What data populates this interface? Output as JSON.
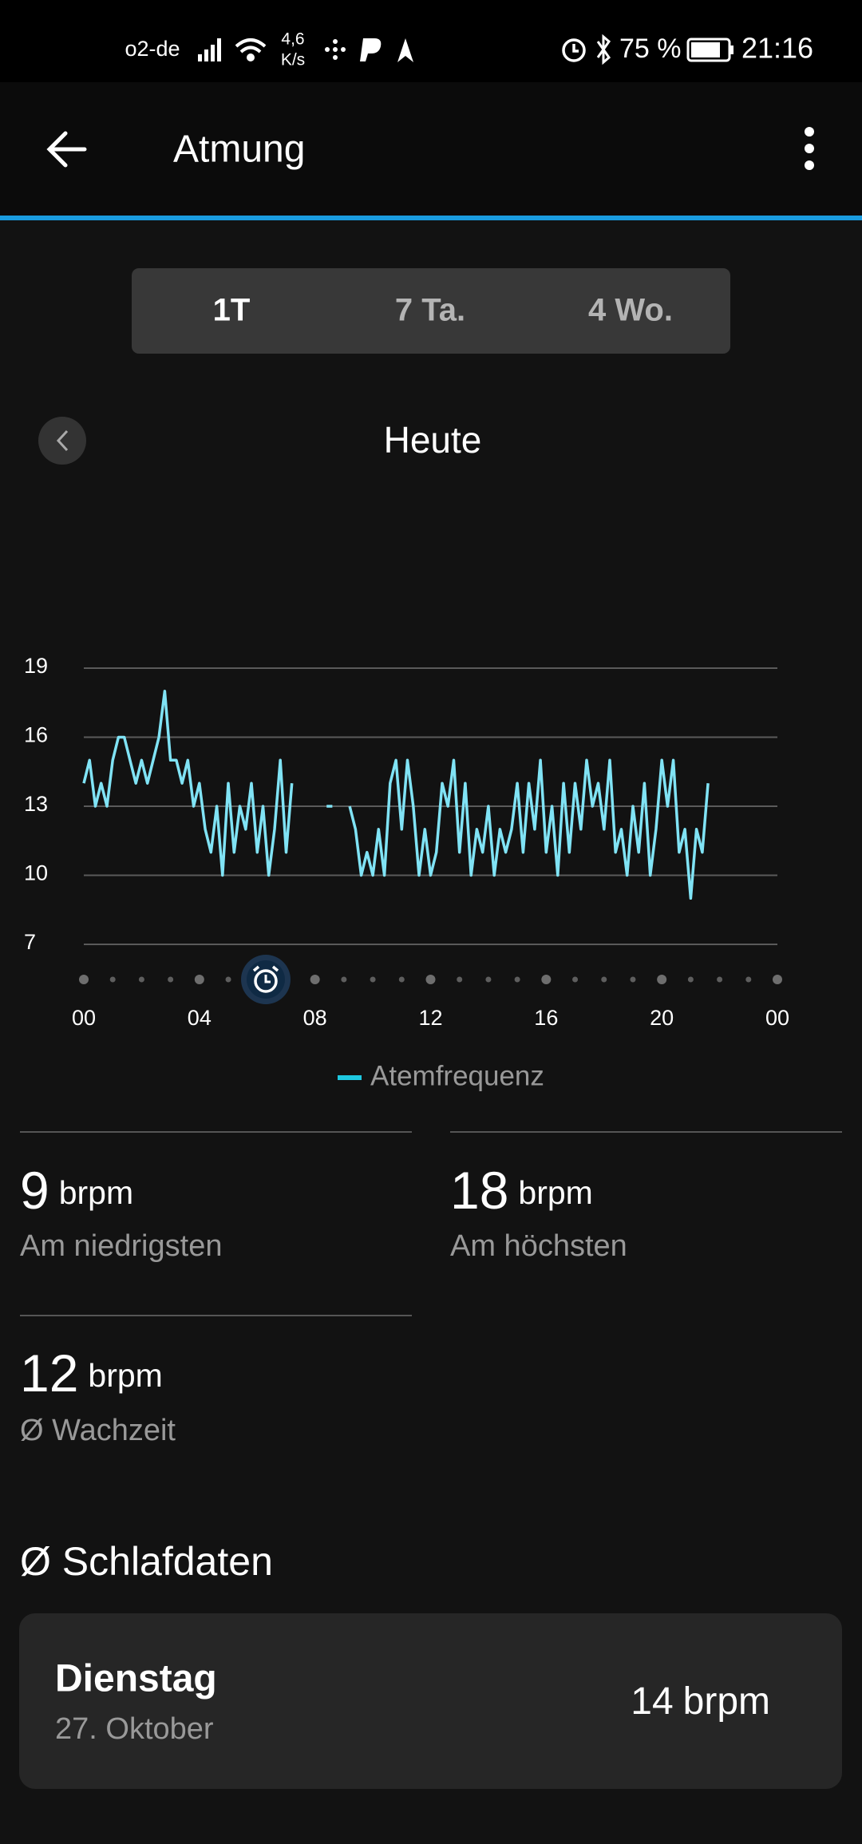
{
  "status_bar": {
    "carrier": "o2-de",
    "speed": "4,6",
    "speed_unit": "K/s",
    "battery": "75 %",
    "time": "21:16"
  },
  "header": {
    "title": "Atmung"
  },
  "tabs": [
    "1T",
    "7 Ta.",
    "4 Wo."
  ],
  "period": "Heute",
  "chart_data": {
    "type": "line",
    "x": [
      0,
      0.2,
      0.4,
      0.6,
      0.8,
      1,
      1.2,
      1.4,
      1.6,
      1.8,
      2,
      2.2,
      2.4,
      2.6,
      2.8,
      3,
      3.2,
      3.4,
      3.6,
      3.8,
      4,
      4.2,
      4.4,
      4.6,
      4.8,
      5,
      5.2,
      5.4,
      5.6,
      5.8,
      6,
      6.2,
      6.4,
      6.6,
      6.8,
      7,
      7.2,
      7.4,
      7.6,
      7.8,
      8,
      8.2,
      8.4,
      8.6,
      8.8,
      9,
      9.2,
      9.4,
      9.6,
      9.8,
      10,
      10.2,
      10.4,
      10.6,
      10.8,
      11,
      11.2,
      11.4,
      11.6,
      11.8,
      12,
      12.2,
      12.4,
      12.6,
      12.8,
      13,
      13.2,
      13.4,
      13.6,
      13.8,
      14,
      14.2,
      14.4,
      14.6,
      14.8,
      15,
      15.2,
      15.4,
      15.6,
      15.8,
      16,
      16.2,
      16.4,
      16.6,
      16.8,
      17,
      17.2,
      17.4,
      17.6,
      17.8,
      18,
      18.2,
      18.4,
      18.6,
      18.8,
      19,
      19.2,
      19.4,
      19.6,
      19.8,
      20,
      20.2,
      20.4,
      20.6,
      20.8,
      21,
      21.2,
      21.4,
      21.6
    ],
    "series": [
      {
        "name": "Atemfrequenz",
        "color": "#80e3f5",
        "legend_color": "#1ec8e0",
        "values": [
          14,
          15,
          13,
          14,
          13,
          15,
          16,
          16,
          15,
          14,
          15,
          14,
          15,
          16,
          18,
          15,
          15,
          14,
          15,
          13,
          14,
          12,
          11,
          13,
          10,
          14,
          11,
          13,
          12,
          14,
          11,
          13,
          10,
          12,
          15,
          11,
          14,
          null,
          null,
          null,
          null,
          null,
          13,
          13,
          null,
          null,
          13,
          12,
          10,
          11,
          10,
          12,
          10,
          14,
          15,
          12,
          15,
          13,
          10,
          12,
          10,
          11,
          14,
          13,
          15,
          11,
          14,
          10,
          12,
          11,
          13,
          10,
          12,
          11,
          12,
          14,
          11,
          14,
          12,
          15,
          11,
          13,
          10,
          14,
          11,
          14,
          12,
          15,
          13,
          14,
          12,
          15,
          11,
          12,
          10,
          13,
          11,
          14,
          10,
          12,
          15,
          13,
          15,
          11,
          12,
          9,
          12,
          11,
          14
        ]
      }
    ],
    "xlim": [
      0,
      24
    ],
    "xticks": [
      {
        "value": 0,
        "label": "00"
      },
      {
        "value": 4,
        "label": "04"
      },
      {
        "value": 8,
        "label": "08"
      },
      12,
      16,
      20,
      {
        "value": 24,
        "label": "00"
      }
    ],
    "ylim": [
      7,
      19
    ],
    "yticks": [
      7,
      10,
      13,
      16,
      19
    ],
    "grid": true
  },
  "stats": [
    {
      "value": "9",
      "unit": "brpm",
      "label": "Am niedrigsten"
    },
    {
      "value": "18",
      "unit": "brpm",
      "label": "Am höchsten"
    },
    {
      "value": "12",
      "unit": "brpm",
      "label": "Ø Wachzeit"
    }
  ],
  "sleep": {
    "title": "Ø Schlafdaten",
    "day": "Dienstag",
    "date": "27. Oktober",
    "value": "14",
    "unit": "brpm"
  }
}
